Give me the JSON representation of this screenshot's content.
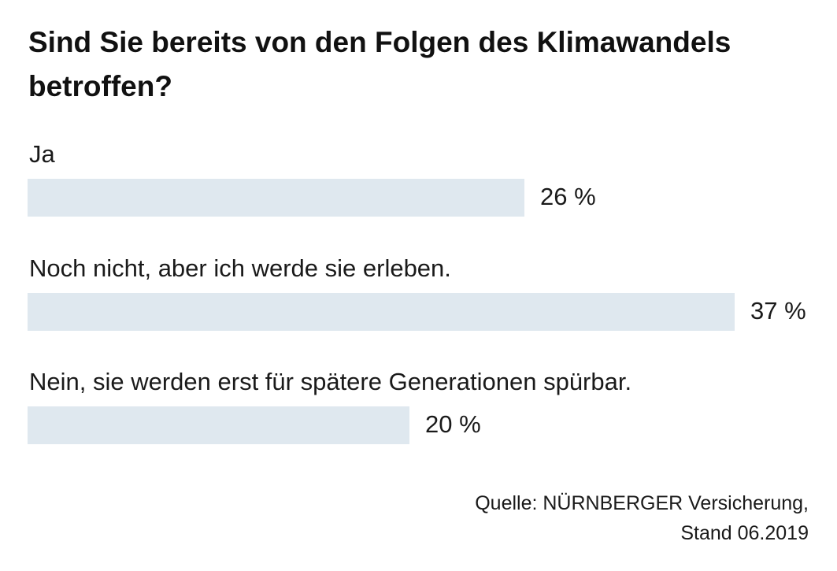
{
  "chart_data": {
    "type": "bar",
    "orientation": "horizontal",
    "title": "Sind Sie bereits von den Folgen des Klimawandels betroffen?",
    "categories": [
      "Ja",
      "Noch nicht, aber ich werde sie erleben.",
      "Nein, sie werden erst für spätere Generationen spürbar."
    ],
    "values": [
      26,
      37,
      20
    ],
    "value_labels": [
      "26 %",
      "37 %",
      "20 %"
    ],
    "unit": "%",
    "xlim": [
      0,
      37
    ],
    "grid": false,
    "bar_color": "#dfe8ef",
    "source": {
      "line1": "Quelle: NÜRNBERGER Versicherung,",
      "line2": "Stand 06.2019"
    }
  }
}
